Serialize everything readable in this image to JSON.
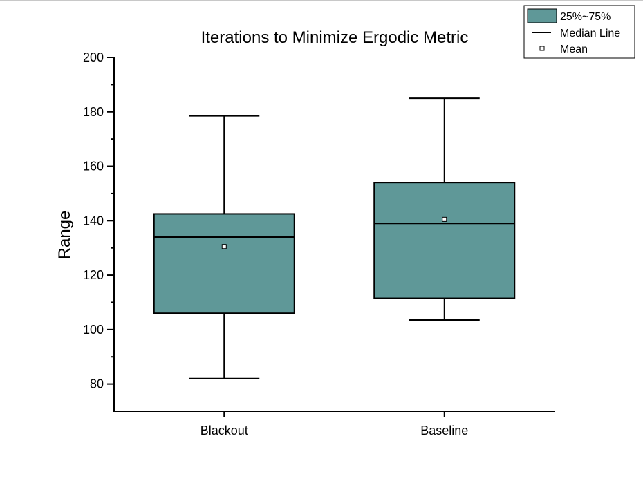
{
  "chart_data": {
    "type": "box",
    "title": "Iterations to Minimize Ergodic Metric",
    "xlabel": "",
    "ylabel": "Range",
    "ylim": [
      70,
      200
    ],
    "yticks": [
      80,
      100,
      120,
      140,
      160,
      180,
      200
    ],
    "categories": [
      "Blackout",
      "Baseline"
    ],
    "boxes": [
      {
        "category": "Blackout",
        "whisker_low": 82,
        "q1": 106,
        "median": 134,
        "q3": 142.5,
        "whisker_high": 178.5,
        "mean": 130.5
      },
      {
        "category": "Baseline",
        "whisker_low": 103.5,
        "q1": 111.5,
        "median": 139,
        "q3": 154,
        "whisker_high": 185,
        "mean": 140.5
      }
    ],
    "legend": {
      "placement": "top-right",
      "entries": [
        "25%~75%",
        "Median Line",
        "Mean"
      ]
    },
    "box_color": "#5f9898",
    "grid": false
  }
}
